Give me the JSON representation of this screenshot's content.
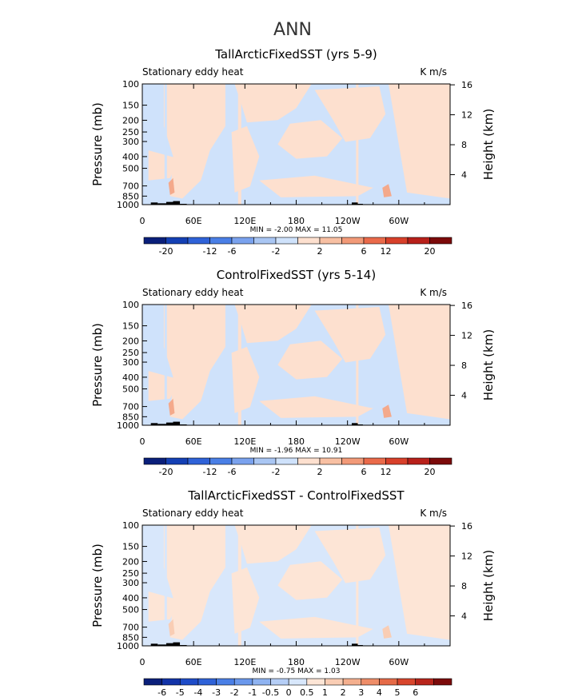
{
  "figure": {
    "title": "ANN"
  },
  "chart_data": [
    {
      "type": "heatmap",
      "title": "TallArcticFixedSST (yrs 5-9)",
      "left_label": "Stationary eddy heat",
      "right_label": "K m/s",
      "ylabel": "Pressure (mb)",
      "ylabel_right": "Height (km)",
      "x_ticks": [
        "0",
        "60E",
        "120E",
        "180",
        "120W",
        "60W"
      ],
      "y_ticks": [
        "100",
        "150",
        "200",
        "250",
        "300",
        "400",
        "500",
        "700",
        "850",
        "1000"
      ],
      "y_ticks_right": [
        "16",
        "12",
        "8",
        "4"
      ],
      "min_max": "MIN =   -2.00   MAX =   11.05",
      "colorbar_labels": [
        "-20",
        "-12",
        "-6",
        "-2",
        "2",
        "6",
        "12",
        "20"
      ],
      "colorbar_colors": [
        "#0a1f7a",
        "#1440b4",
        "#2f62d8",
        "#4a7fe6",
        "#7aa2ee",
        "#a9c6f3",
        "#cfe2fb",
        "#fde0cf",
        "#f8c0a3",
        "#f29a78",
        "#ea6a4a",
        "#d8402a",
        "#b8201a",
        "#7c0a0a"
      ],
      "fill_colors": {
        "negative": "#cfe2fb",
        "positive": "#fde0cf",
        "stronger_positive": "#f4a98b"
      }
    },
    {
      "type": "heatmap",
      "title": "ControlFixedSST (yrs 5-14)",
      "left_label": "Stationary eddy heat",
      "right_label": "K m/s",
      "ylabel": "Pressure (mb)",
      "ylabel_right": "Height (km)",
      "x_ticks": [
        "0",
        "60E",
        "120E",
        "180",
        "120W",
        "60W"
      ],
      "y_ticks": [
        "100",
        "150",
        "200",
        "250",
        "300",
        "400",
        "500",
        "700",
        "850",
        "1000"
      ],
      "y_ticks_right": [
        "16",
        "12",
        "8",
        "4"
      ],
      "min_max": "MIN =   -1.96   MAX =   10.91",
      "colorbar_labels": [
        "-20",
        "-12",
        "-6",
        "-2",
        "2",
        "6",
        "12",
        "20"
      ],
      "colorbar_colors": [
        "#0a1f7a",
        "#1440b4",
        "#2f62d8",
        "#4a7fe6",
        "#7aa2ee",
        "#a9c6f3",
        "#cfe2fb",
        "#fde0cf",
        "#f8c0a3",
        "#f29a78",
        "#ea6a4a",
        "#d8402a",
        "#b8201a",
        "#7c0a0a"
      ],
      "fill_colors": {
        "negative": "#cfe2fb",
        "positive": "#fde0cf",
        "stronger_positive": "#f4a98b"
      }
    },
    {
      "type": "heatmap",
      "title": "TallArcticFixedSST - ControlFixedSST",
      "left_label": "Stationary eddy heat",
      "right_label": "K m/s",
      "ylabel": "Pressure (mb)",
      "ylabel_right": "Height (km)",
      "x_ticks": [
        "0",
        "60E",
        "120E",
        "180",
        "120W",
        "60W"
      ],
      "y_ticks": [
        "100",
        "150",
        "200",
        "250",
        "300",
        "400",
        "500",
        "700",
        "850",
        "1000"
      ],
      "y_ticks_right": [
        "16",
        "12",
        "8",
        "4"
      ],
      "min_max": "MIN =   -0.75   MAX =   1.03",
      "colorbar_labels": [
        "-6",
        "-5",
        "-4",
        "-3",
        "-2",
        "-1",
        "-0.5",
        "0",
        "0.5",
        "1",
        "2",
        "3",
        "4",
        "5",
        "6"
      ],
      "colorbar_colors": [
        "#0a1f7a",
        "#1233a8",
        "#1e4cc8",
        "#2f62d8",
        "#4a7fe6",
        "#6a98ec",
        "#8fb3f1",
        "#b5cef6",
        "#d8e7fb",
        "#fde5d6",
        "#f9cdb4",
        "#f4af8e",
        "#ee8d68",
        "#e56a47",
        "#d8452c",
        "#b8241b",
        "#7c0a0a"
      ],
      "fill_colors": {
        "negative": "#d8e7fb",
        "positive": "#fde5d6",
        "stronger_positive": "#f9cdb4"
      }
    }
  ]
}
